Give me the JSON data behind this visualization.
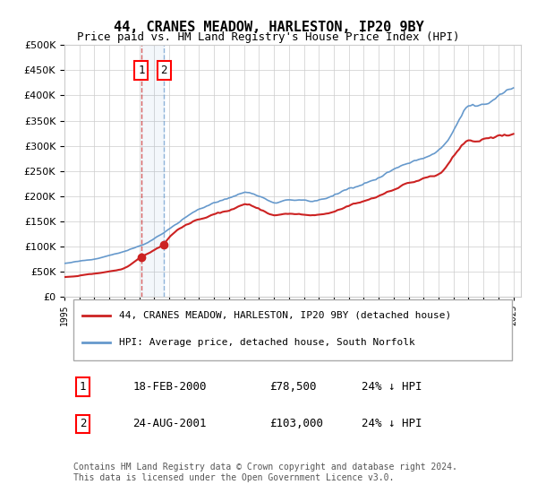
{
  "title": "44, CRANES MEADOW, HARLESTON, IP20 9BY",
  "subtitle": "Price paid vs. HM Land Registry's House Price Index (HPI)",
  "legend_line1": "44, CRANES MEADOW, HARLESTON, IP20 9BY (detached house)",
  "legend_line2": "HPI: Average price, detached house, South Norfolk",
  "transaction1_label": "1",
  "transaction1_date": "18-FEB-2000",
  "transaction1_price": "£78,500",
  "transaction1_hpi": "24% ↓ HPI",
  "transaction1_year": 2000.13,
  "transaction1_value": 78500,
  "transaction2_label": "2",
  "transaction2_date": "24-AUG-2001",
  "transaction2_price": "£103,000",
  "transaction2_hpi": "24% ↓ HPI",
  "transaction2_year": 2001.65,
  "transaction2_value": 103000,
  "footer": "Contains HM Land Registry data © Crown copyright and database right 2024.\nThis data is licensed under the Open Government Licence v3.0.",
  "hpi_color": "#6699cc",
  "property_color": "#cc2222",
  "vline_color_1": "#cc2222",
  "vline_color_2": "#6699cc",
  "ylim": [
    0,
    500000
  ],
  "xlim_start": 1995.0,
  "xlim_end": 2025.5,
  "background_color": "#ffffff",
  "grid_color": "#cccccc"
}
